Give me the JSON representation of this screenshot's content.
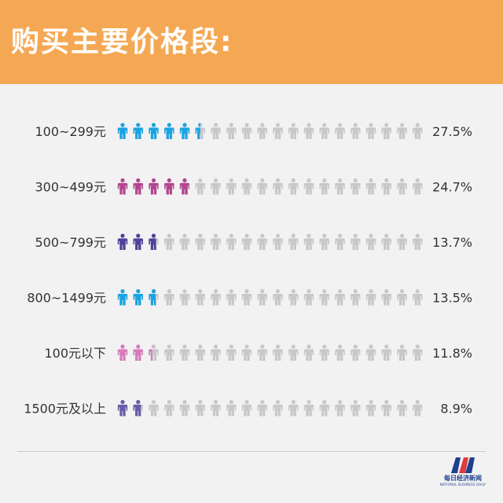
{
  "title": "购买主要价格段:",
  "colors": {
    "header_bg": "#f5a853",
    "background": "#f2f2f2",
    "inactive_icon": "#c8c8c8",
    "divider": "#c9c9c9",
    "text": "#333333"
  },
  "chart_data": {
    "type": "pictograph",
    "icons_per_row": 20,
    "icon": "person-icon",
    "categories": [
      "100~299元",
      "300~499元",
      "500~799元",
      "800~1499元",
      "100元以下",
      "1500元及以上"
    ],
    "values": [
      27.5,
      24.7,
      13.7,
      13.5,
      11.8,
      8.9
    ],
    "value_labels": [
      "27.5%",
      "24.7%",
      "13.7%",
      "13.5%",
      "11.8%",
      "8.9%"
    ],
    "unit": "%",
    "highlight_colors": [
      "#1aa3e0",
      "#b2468f",
      "#4e4199",
      "#1aa3e0",
      "#d67bb8",
      "#6b5aa8"
    ]
  },
  "logo": {
    "name": "每日经济新闻",
    "subtitle": "NATIONAL BUSINESS DAILY",
    "colors": [
      "#1f3f8f",
      "#e03a3e"
    ]
  }
}
